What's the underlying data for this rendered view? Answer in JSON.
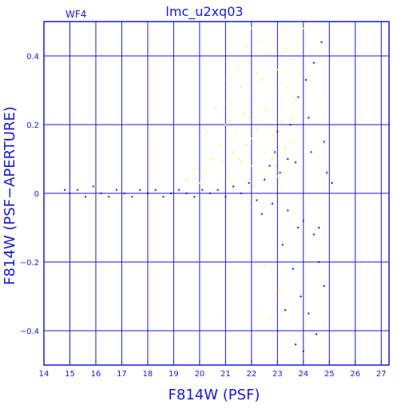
{
  "chart_data": {
    "type": "scatter",
    "title": "lmc_u2xq03",
    "panel_label": "WF4",
    "xlabel": "F814W (PSF)",
    "ylabel": "F814W (PSF−APERTURE)",
    "xlim": [
      14,
      27.3
    ],
    "ylim": [
      -0.5,
      0.5
    ],
    "xticks": [
      14,
      15,
      16,
      17,
      18,
      19,
      20,
      21,
      22,
      23,
      24,
      25,
      26,
      27
    ],
    "yticks": [
      -0.4,
      -0.2,
      0,
      0.2,
      0.4
    ],
    "ytick_labels": [
      "−0.4",
      "−0.2",
      "0",
      "0.2",
      "0.4"
    ],
    "grid": true,
    "colors": {
      "axes": "#1a1ad8",
      "series_blue": "#1818e0",
      "series_yellow": "#ffff22"
    },
    "series": [
      {
        "color": "#ffff22",
        "description_points": "approximate sampled points read from plot",
        "points": [
          [
            20.2,
            0.06
          ],
          [
            20.5,
            0.1
          ],
          [
            20.8,
            0.14
          ],
          [
            21.0,
            0.2
          ],
          [
            21.2,
            0.26
          ],
          [
            21.4,
            0.18
          ],
          [
            21.5,
            0.1
          ],
          [
            21.6,
            0.31
          ],
          [
            21.7,
            0.23
          ],
          [
            21.8,
            0.14
          ],
          [
            21.9,
            0.38
          ],
          [
            22.0,
            0.08
          ],
          [
            22.1,
            0.27
          ],
          [
            22.2,
            0.19
          ],
          [
            22.3,
            0.44
          ],
          [
            22.4,
            0.33
          ],
          [
            22.5,
            0.12
          ],
          [
            22.6,
            0.24
          ],
          [
            22.7,
            0.41
          ],
          [
            22.8,
            0.17
          ],
          [
            22.9,
            0.29
          ],
          [
            23.0,
            0.36
          ],
          [
            23.1,
            0.21
          ],
          [
            23.2,
            0.47
          ],
          [
            23.3,
            0.13
          ],
          [
            23.4,
            0.31
          ],
          [
            23.5,
            0.39
          ],
          [
            23.6,
            0.22
          ],
          [
            23.7,
            0.27
          ],
          [
            23.8,
            0.44
          ],
          [
            21.1,
            0.05
          ],
          [
            21.3,
            0.12
          ],
          [
            21.6,
            0.09
          ],
          [
            22.0,
            0.16
          ],
          [
            22.4,
            0.06
          ],
          [
            22.8,
            0.1
          ],
          [
            23.0,
            0.05
          ],
          [
            22.2,
            0.35
          ],
          [
            21.9,
            0.22
          ],
          [
            22.6,
            0.46
          ],
          [
            19.5,
            0.04
          ],
          [
            19.8,
            0.07
          ],
          [
            20.0,
            0.03
          ],
          [
            20.9,
            0.09
          ],
          [
            21.4,
            0.04
          ],
          [
            22.1,
            0.02
          ],
          [
            22.9,
            0.08
          ],
          [
            23.5,
            0.15
          ],
          [
            23.9,
            0.35
          ],
          [
            24.0,
            0.48
          ],
          [
            22.5,
            -0.21
          ],
          [
            22.7,
            -0.36
          ],
          [
            23.1,
            -0.28
          ],
          [
            21.8,
            0.43
          ],
          [
            21.5,
            0.36
          ],
          [
            22.0,
            0.48
          ],
          [
            23.3,
            0.42
          ],
          [
            20.6,
            0.25
          ],
          [
            20.3,
            0.18
          ],
          [
            21.2,
            0.33
          ]
        ]
      },
      {
        "color": "#1818e0",
        "description_points": "approximate sampled points read from plot",
        "points": [
          [
            14.8,
            0.01
          ],
          [
            15.0,
            0.0
          ],
          [
            15.3,
            0.01
          ],
          [
            15.6,
            -0.01
          ],
          [
            15.9,
            0.02
          ],
          [
            16.2,
            0.0
          ],
          [
            16.5,
            -0.01
          ],
          [
            16.8,
            0.01
          ],
          [
            17.1,
            0.0
          ],
          [
            17.4,
            -0.01
          ],
          [
            17.7,
            0.01
          ],
          [
            18.0,
            0.0
          ],
          [
            18.3,
            0.01
          ],
          [
            18.6,
            -0.01
          ],
          [
            18.9,
            0.0
          ],
          [
            19.2,
            0.01
          ],
          [
            19.5,
            0.0
          ],
          [
            19.8,
            -0.01
          ],
          [
            20.1,
            0.01
          ],
          [
            20.4,
            0.0
          ],
          [
            20.7,
            0.01
          ],
          [
            21.0,
            -0.01
          ],
          [
            21.3,
            0.02
          ],
          [
            21.6,
            0.0
          ],
          [
            21.9,
            0.03
          ],
          [
            22.2,
            -0.02
          ],
          [
            22.5,
            0.04
          ],
          [
            22.8,
            -0.03
          ],
          [
            23.1,
            0.06
          ],
          [
            23.4,
            -0.05
          ],
          [
            23.7,
            0.09
          ],
          [
            24.0,
            -0.08
          ],
          [
            24.3,
            0.12
          ],
          [
            24.6,
            -0.1
          ],
          [
            24.8,
            0.15
          ],
          [
            23.5,
            0.2
          ],
          [
            23.8,
            0.28
          ],
          [
            24.1,
            0.33
          ],
          [
            24.4,
            0.38
          ],
          [
            24.7,
            0.44
          ],
          [
            23.2,
            -0.15
          ],
          [
            23.6,
            -0.22
          ],
          [
            23.9,
            -0.3
          ],
          [
            24.2,
            -0.35
          ],
          [
            24.5,
            -0.41
          ],
          [
            24.8,
            -0.27
          ],
          [
            23.3,
            -0.34
          ],
          [
            23.7,
            -0.44
          ],
          [
            24.0,
            -0.46
          ],
          [
            24.6,
            -0.2
          ],
          [
            22.9,
            0.12
          ],
          [
            23.0,
            0.18
          ],
          [
            23.4,
            0.1
          ],
          [
            24.2,
            0.22
          ],
          [
            24.9,
            0.06
          ],
          [
            25.1,
            0.03
          ],
          [
            24.4,
            -0.12
          ],
          [
            23.8,
            -0.1
          ],
          [
            22.7,
            0.08
          ],
          [
            22.4,
            -0.06
          ]
        ]
      }
    ]
  }
}
